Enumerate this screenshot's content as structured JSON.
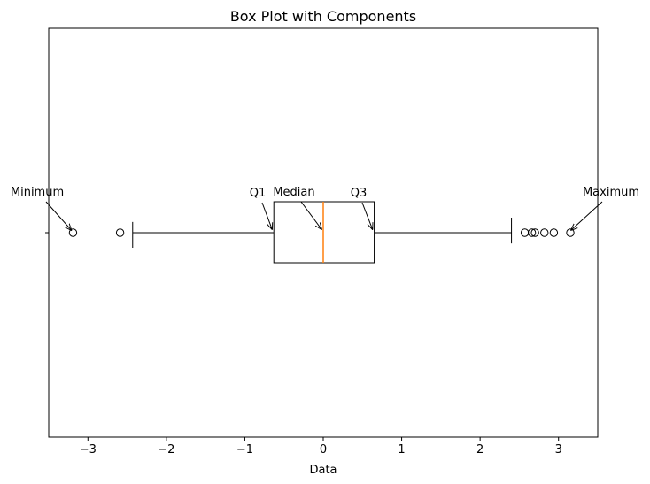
{
  "chart_data": {
    "type": "boxplot",
    "orientation": "horizontal",
    "title": "Box Plot with Components",
    "xlabel": "Data",
    "ylabel": "",
    "xlim": [
      -3.5,
      3.5
    ],
    "xticks": [
      -3,
      -2,
      -1,
      0,
      1,
      2,
      3
    ],
    "xtick_labels": [
      "−3",
      "−2",
      "−1",
      "0",
      "1",
      "2",
      "3"
    ],
    "grid": false,
    "box": {
      "whisker_low": -2.43,
      "q1": -0.63,
      "median": 0.0,
      "q3": 0.65,
      "whisker_high": 2.4
    },
    "outliers": [
      -3.19,
      -2.59,
      2.57,
      2.66,
      2.7,
      2.82,
      2.94,
      3.15
    ],
    "colors": {
      "box": "#000000",
      "median": "#ff7f0e",
      "outlier": "#000000"
    },
    "annotations": [
      {
        "name": "minimum",
        "text": "Minimum",
        "target": -3.19
      },
      {
        "name": "q1",
        "text": "Q1",
        "target": -0.63
      },
      {
        "name": "median",
        "text": "Median",
        "target": 0.0
      },
      {
        "name": "q3",
        "text": "Q3",
        "target": 0.65
      },
      {
        "name": "maximum",
        "text": "Maximum",
        "target": 3.15
      }
    ]
  }
}
